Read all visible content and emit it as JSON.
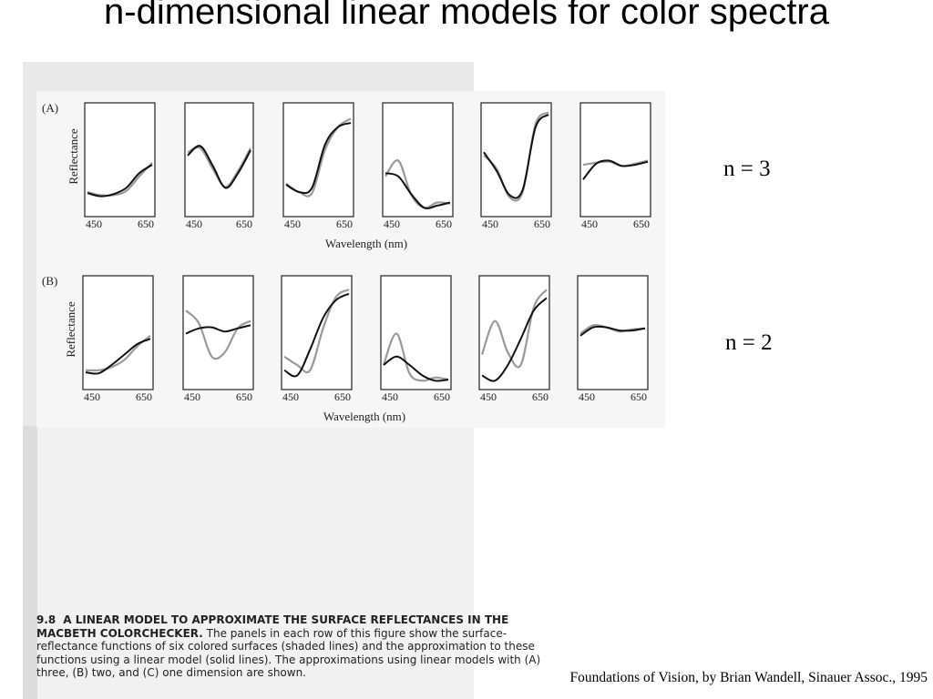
{
  "slide": {
    "title": "n-dimensional linear models for color spectra",
    "credit": "Foundations of Vision, by Brian Wandell, Sinauer Assoc., 1995"
  },
  "figure": {
    "rows": [
      {
        "label": "(A)",
        "n_label": "n = 3",
        "ylabel": "Reflectance",
        "xlabel": "Wavelength (nm)",
        "tick_labels": [
          "450",
          "650"
        ],
        "panels": [
          {
            "measured": [
              0.2,
              0.17,
              0.17,
              0.21,
              0.35,
              0.48
            ],
            "model": [
              0.19,
              0.16,
              0.18,
              0.24,
              0.38,
              0.46
            ]
          },
          {
            "measured": [
              0.58,
              0.62,
              0.42,
              0.25,
              0.4,
              0.62
            ],
            "model": [
              0.55,
              0.64,
              0.45,
              0.24,
              0.38,
              0.6
            ]
          },
          {
            "measured": [
              0.28,
              0.2,
              0.19,
              0.6,
              0.82,
              0.9
            ],
            "model": [
              0.27,
              0.2,
              0.24,
              0.65,
              0.82,
              0.86
            ]
          },
          {
            "measured": [
              0.35,
              0.5,
              0.17,
              0.05,
              0.1,
              0.09
            ],
            "model": [
              0.38,
              0.35,
              0.18,
              0.05,
              0.07,
              0.1
            ]
          },
          {
            "measured": [
              0.55,
              0.42,
              0.15,
              0.2,
              0.85,
              0.96
            ],
            "model": [
              0.58,
              0.4,
              0.17,
              0.22,
              0.82,
              0.94
            ]
          },
          {
            "measured": [
              0.46,
              0.48,
              0.49,
              0.45,
              0.47,
              0.5
            ],
            "model": [
              0.32,
              0.47,
              0.5,
              0.45,
              0.46,
              0.49
            ]
          }
        ]
      },
      {
        "label": "(B)",
        "n_label": "n = 2",
        "ylabel": "Reflectance",
        "xlabel": "Wavelength (nm)",
        "tick_labels": [
          "450",
          "650"
        ],
        "panels": [
          {
            "measured": [
              0.15,
              0.15,
              0.18,
              0.25,
              0.38,
              0.48
            ],
            "model": [
              0.13,
              0.12,
              0.2,
              0.3,
              0.4,
              0.45
            ]
          },
          {
            "measured": [
              0.72,
              0.6,
              0.28,
              0.32,
              0.55,
              0.62
            ],
            "model": [
              0.5,
              0.55,
              0.56,
              0.52,
              0.55,
              0.58
            ]
          },
          {
            "measured": [
              0.28,
              0.2,
              0.15,
              0.55,
              0.85,
              0.92
            ],
            "model": [
              0.15,
              0.1,
              0.35,
              0.65,
              0.82,
              0.88
            ]
          },
          {
            "measured": [
              0.2,
              0.5,
              0.12,
              0.05,
              0.08,
              0.06
            ],
            "model": [
              0.2,
              0.28,
              0.2,
              0.1,
              0.05,
              0.06
            ]
          },
          {
            "measured": [
              0.3,
              0.62,
              0.32,
              0.2,
              0.75,
              0.92
            ],
            "model": [
              0.1,
              0.05,
              0.2,
              0.45,
              0.72,
              0.84
            ]
          },
          {
            "measured": [
              0.5,
              0.58,
              0.56,
              0.52,
              0.54,
              0.55
            ],
            "model": [
              0.48,
              0.56,
              0.56,
              0.53,
              0.53,
              0.55
            ]
          }
        ]
      }
    ]
  },
  "caption": {
    "number": "9.8",
    "heading": "A LINEAR MODEL TO APPROXIMATE THE SURFACE REFLECTANCES IN THE MACBETH COLORCHECKER.",
    "body": "The panels in each row of this figure show the surface-reflectance functions of six colored surfaces (shaded lines) and the approximation to these functions using a linear model (solid lines). The approximations using linear models with (A) three, (B) two, and (C) one dimension are shown."
  }
}
